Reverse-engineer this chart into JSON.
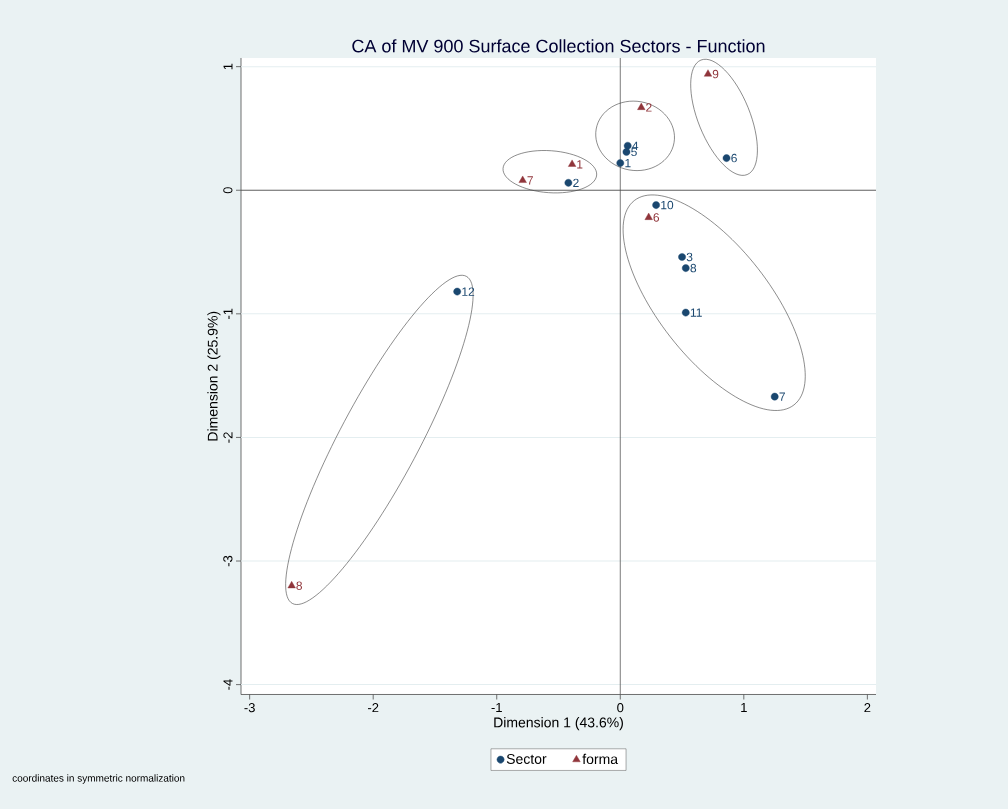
{
  "chart_data": {
    "type": "scatter",
    "title": "CA of MV 900 Surface Collection Sectors - Function",
    "xlabel": "Dimension 1 (43.6%)",
    "ylabel": "Dimension 2 (25.9%)",
    "xlim": [
      -3.07,
      2.07
    ],
    "ylim": [
      -4.08,
      1.07
    ],
    "xticks": [
      -3,
      -2,
      -1,
      0,
      1,
      2
    ],
    "yticks": [
      -4,
      -3,
      -2,
      -1,
      0,
      1
    ],
    "grid": "y",
    "legend": "bottom",
    "ref_lines": [
      {
        "axis": "x",
        "value": 0
      },
      {
        "axis": "y",
        "value": 0
      }
    ],
    "series": [
      {
        "name": "Sector",
        "color": "#1a476f",
        "marker": "circle",
        "x": [
          0.0,
          -0.42,
          0.5,
          0.06,
          0.05,
          0.86,
          1.25,
          0.53,
          0.29,
          0.53,
          -1.32
        ],
        "values": [
          0.22,
          0.06,
          -0.54,
          0.36,
          0.31,
          0.26,
          -1.67,
          -0.63,
          -0.12,
          -0.99,
          -0.82
        ]
      },
      {
        "name": "forma",
        "color": "#90353b",
        "marker": "triangle",
        "x": [
          -0.39,
          0.17,
          0.23,
          -0.79,
          -2.66,
          0.71
        ],
        "values": [
          0.21,
          0.67,
          -0.22,
          0.08,
          -3.2,
          0.94
        ]
      }
    ],
    "annotations": [
      {
        "text": "1",
        "x": 0.0,
        "y": 0.22
      },
      {
        "text": "2",
        "x": -0.42,
        "y": 0.06
      },
      {
        "text": "3",
        "x": 0.5,
        "y": -0.54
      },
      {
        "text": "4",
        "x": 0.06,
        "y": 0.36
      },
      {
        "text": "5",
        "x": 0.05,
        "y": 0.31
      },
      {
        "text": "6",
        "x": 0.86,
        "y": 0.26
      },
      {
        "text": "7",
        "x": 1.25,
        "y": -1.67
      },
      {
        "text": "8",
        "x": 0.53,
        "y": -0.63
      },
      {
        "text": "10",
        "x": 0.29,
        "y": -0.12
      },
      {
        "text": "11",
        "x": 0.53,
        "y": -0.99
      },
      {
        "text": "12",
        "x": -1.32,
        "y": -0.82
      },
      {
        "text": "1",
        "x": -0.39,
        "y": 0.21
      },
      {
        "text": "2",
        "x": 0.17,
        "y": 0.67
      },
      {
        "text": "6",
        "x": 0.23,
        "y": -0.22
      },
      {
        "text": "7",
        "x": -0.79,
        "y": 0.08
      },
      {
        "text": "8",
        "x": -2.66,
        "y": -3.2
      },
      {
        "text": "9",
        "x": 0.71,
        "y": 0.94
      },
      "coordinates in symmetric normalization"
    ]
  }
}
